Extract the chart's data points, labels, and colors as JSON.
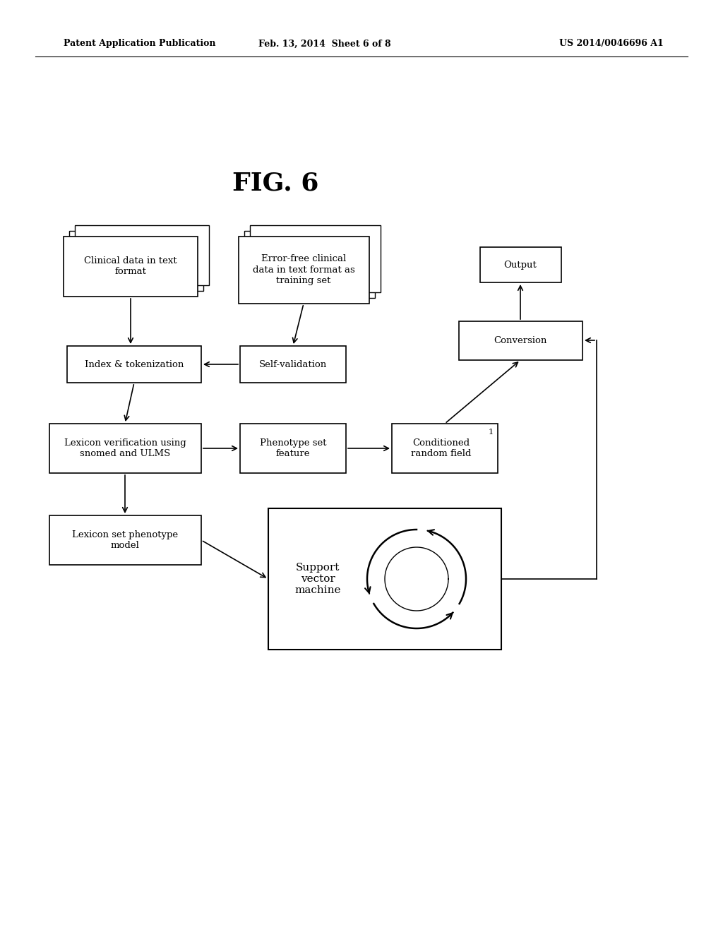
{
  "bg_color": "#ffffff",
  "header_left": "Patent Application Publication",
  "header_mid": "Feb. 13, 2014  Sheet 6 of 8",
  "header_right": "US 2014/0046696 A1",
  "fig_label": "FIG. 6"
}
